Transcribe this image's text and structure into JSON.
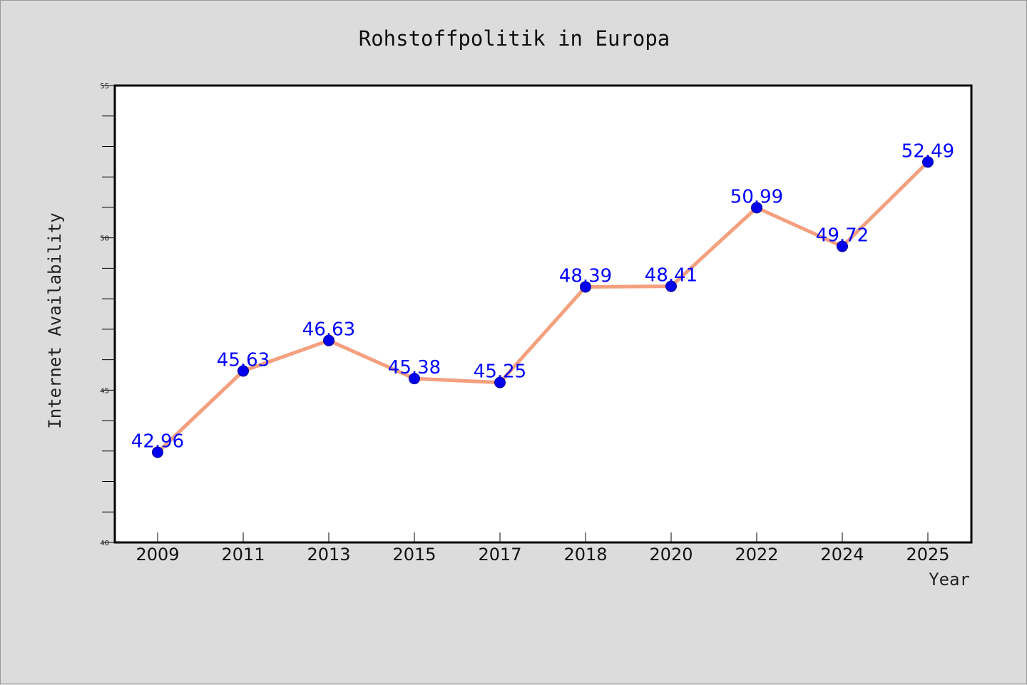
{
  "chart_data": {
    "type": "line",
    "title": "Rohstoffpolitik in Europa",
    "xlabel": "Year",
    "ylabel": "Internet Availability",
    "categories": [
      "2009",
      "2011",
      "2013",
      "2015",
      "2017",
      "2018",
      "2020",
      "2022",
      "2024",
      "2025"
    ],
    "series": [
      {
        "values": [
          42.96,
          45.63,
          46.63,
          45.38,
          45.25,
          48.39,
          48.41,
          50.99,
          49.72,
          52.49
        ],
        "data_labels": [
          "42.96",
          "45.63",
          "46.63",
          "45.38",
          "45.25",
          "48.39",
          "48.41",
          "50.99",
          "49.72",
          "52.49"
        ]
      }
    ],
    "ylim": [
      40,
      55
    ],
    "y_ticks": [
      "40",
      "45",
      "50",
      "55"
    ],
    "y_tick_values": [
      40,
      45,
      50,
      55
    ],
    "y_minor_step": 1,
    "grid": false,
    "legend": "none",
    "colors": {
      "line": "#f4a07f",
      "marker": "#0000ee",
      "data_label": "#0000ff",
      "plot_background": "#ffffff",
      "page_background": "#dcdcdc"
    }
  }
}
